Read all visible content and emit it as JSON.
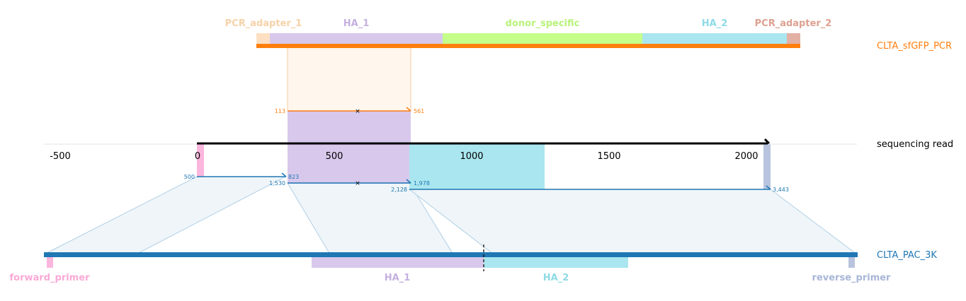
{
  "colors": {
    "orange": "#ff7f0e",
    "blue": "#1f77b4",
    "pcr_adapter_1": "#fde0c2",
    "pcr_adapter_1_text": "#f6d2a8",
    "ha_1": "#d8c8ec",
    "ha_1_text": "#c5b0e0",
    "donor_specific": "#c5ff8a",
    "donor_specific_text": "#b8f27a",
    "ha_2": "#aae6ef",
    "ha_2_text": "#8ddbe6",
    "pcr_adapter_2": "#e3b0a4",
    "pcr_adapter_2_text": "#dda090",
    "forward_primer": "#fbb6dd",
    "forward_primer_text": "#f9a9d6",
    "reverse_primer": "#b8c4de",
    "reverse_primer_text": "#a8b6d6"
  },
  "top_track": {
    "name": "CLTA_sfGFP_PCR",
    "features": [
      {
        "name": "PCR_adapter_1",
        "color_key": "pcr_adapter_1"
      },
      {
        "name": "HA_1",
        "color_key": "ha_1"
      },
      {
        "name": "donor_specific",
        "color_key": "donor_specific"
      },
      {
        "name": "HA_2",
        "color_key": "ha_2"
      },
      {
        "name": "PCR_adapter_2",
        "color_key": "pcr_adapter_2"
      }
    ]
  },
  "middle_track": {
    "name": "sequencing read",
    "axis_ticks": [
      "-500",
      "0",
      "500",
      "1000",
      "1500",
      "2000"
    ]
  },
  "bottom_track": {
    "name": "CLTA_PAC_3K",
    "features": [
      {
        "name": "forward_primer",
        "color_key": "forward_primer"
      },
      {
        "name": "HA_1",
        "color_key": "ha_1"
      },
      {
        "name": "HA_2",
        "color_key": "ha_2"
      },
      {
        "name": "reverse_primer",
        "color_key": "reverse_primer"
      }
    ]
  },
  "alignments": [
    {
      "query_start": "113",
      "query_end": "561",
      "track": "top"
    },
    {
      "query_start": "500",
      "query_end": "823",
      "track": "bottom"
    },
    {
      "query_start": "1,530",
      "query_end": "1,978",
      "track": "bottom"
    },
    {
      "query_start": "2,128",
      "query_end": "3,443",
      "track": "bottom"
    }
  ]
}
